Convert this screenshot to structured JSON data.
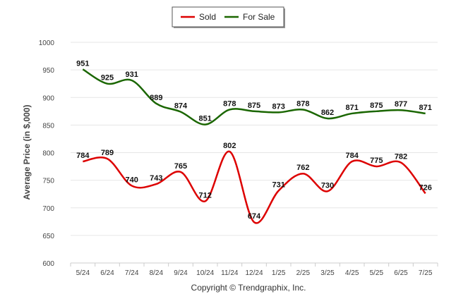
{
  "chart_data": {
    "type": "line",
    "categories": [
      "5/24",
      "6/24",
      "7/24",
      "8/24",
      "9/24",
      "10/24",
      "11/24",
      "12/24",
      "1/25",
      "2/25",
      "3/25",
      "4/25",
      "5/25",
      "6/25",
      "7/25"
    ],
    "series": [
      {
        "name": "Sold",
        "color": "#dd0000",
        "values": [
          784,
          789,
          740,
          743,
          765,
          712,
          802,
          674,
          731,
          762,
          730,
          784,
          775,
          782,
          726
        ]
      },
      {
        "name": "For Sale",
        "color": "#1a6600",
        "values": [
          951,
          925,
          931,
          889,
          874,
          851,
          878,
          875,
          873,
          878,
          862,
          871,
          875,
          877,
          871
        ]
      }
    ],
    "ylabel": "Average Price (in $,000)",
    "xlabel": "",
    "ylim": [
      600,
      1000
    ],
    "yticks": [
      600,
      650,
      700,
      750,
      800,
      850,
      900,
      950,
      1000
    ],
    "grid": true,
    "legend": "top-center"
  },
  "footer": {
    "copyright": "Copyright © Trendgraphix, Inc."
  }
}
